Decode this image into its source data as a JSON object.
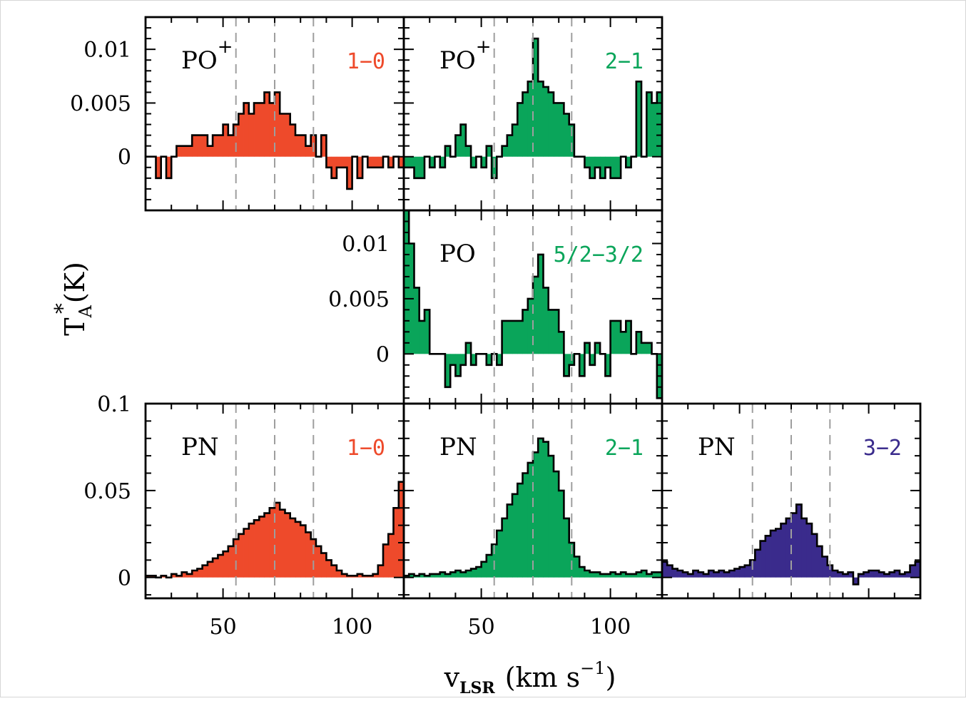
{
  "y_axis_label": {
    "main": "T",
    "sub": "A",
    "sup": "*",
    "unit": "(K)"
  },
  "x_axis_label": {
    "main": "v",
    "sub": "LSR",
    "unit_open": "(km s",
    "sup": "−1",
    "unit_close": ")"
  },
  "chart_data": [
    {
      "type": "line",
      "panel": "top-left",
      "molecule": "PO",
      "molecule_sup": "+",
      "transition": "1−0",
      "transition_color": "#ee4a2b",
      "fill_color": "#ee4a2b",
      "xlim": [
        20,
        120
      ],
      "ylim": [
        -0.005,
        0.013
      ],
      "y_ticks": [
        "0.01",
        "0.005",
        "0"
      ],
      "y_tick_values": [
        0.01,
        0.005,
        0
      ],
      "x_ticks": [],
      "x_tick_values": [],
      "vlines": [
        55,
        70,
        85
      ],
      "x": [
        20,
        22,
        24,
        26,
        28,
        30,
        32,
        34,
        36,
        38,
        40,
        42,
        44,
        46,
        48,
        50,
        52,
        54,
        56,
        58,
        60,
        62,
        64,
        66,
        68,
        70,
        72,
        74,
        76,
        78,
        80,
        82,
        84,
        86,
        88,
        90,
        92,
        94,
        96,
        98,
        100,
        102,
        104,
        106,
        108,
        110,
        112,
        114,
        116,
        118
      ],
      "y": [
        0.0,
        0.0,
        -0.002,
        0.0,
        -0.002,
        0.0,
        0.001,
        0.001,
        0.001,
        0.002,
        0.002,
        0.002,
        0.001,
        0.002,
        0.002,
        0.003,
        0.002,
        0.003,
        0.004,
        0.005,
        0.004,
        0.005,
        0.005,
        0.006,
        0.005,
        0.006,
        0.004,
        0.004,
        0.003,
        0.002,
        0.002,
        0.001,
        0.002,
        0.0,
        0.002,
        -0.001,
        -0.002,
        -0.001,
        -0.001,
        -0.003,
        0.0,
        -0.002,
        0.0,
        -0.001,
        -0.001,
        -0.001,
        0.0,
        -0.001,
        0.0,
        -0.001
      ]
    },
    {
      "type": "line",
      "panel": "top-middle",
      "molecule": "PO",
      "molecule_sup": "+",
      "transition": "2−1",
      "transition_color": "#0aa55a",
      "fill_color": "#0aa55a",
      "xlim": [
        20,
        120
      ],
      "ylim": [
        -0.005,
        0.013
      ],
      "y_ticks": [],
      "y_tick_values": [],
      "x_ticks": [],
      "x_tick_values": [],
      "vlines": [
        55,
        70,
        85
      ],
      "x": [
        20,
        22,
        24,
        26,
        28,
        30,
        32,
        34,
        36,
        38,
        40,
        42,
        44,
        46,
        48,
        50,
        52,
        54,
        56,
        58,
        60,
        62,
        64,
        66,
        68,
        70,
        72,
        74,
        76,
        78,
        80,
        82,
        84,
        86,
        88,
        90,
        92,
        94,
        96,
        98,
        100,
        102,
        104,
        106,
        108,
        110,
        112,
        114,
        116,
        118
      ],
      "y": [
        -0.001,
        -0.001,
        -0.002,
        -0.002,
        0.0,
        -0.001,
        0.0,
        -0.001,
        0.001,
        0.0,
        0.002,
        0.003,
        0.001,
        -0.001,
        0.0,
        -0.001,
        0.001,
        -0.002,
        0.0,
        0.001,
        0.002,
        0.003,
        0.005,
        0.006,
        0.007,
        0.011,
        0.007,
        0.0065,
        0.006,
        0.005,
        0.005,
        0.004,
        0.003,
        0.0,
        0.0,
        -0.001,
        -0.002,
        -0.001,
        -0.002,
        -0.001,
        -0.002,
        -0.002,
        0.0,
        -0.001,
        0.0,
        0.007,
        0.0,
        0.006,
        0.005,
        0.006
      ]
    },
    {
      "type": "line",
      "panel": "middle",
      "molecule": "PO",
      "molecule_sup": "",
      "transition": "5/2−3/2",
      "transition_color": "#0aa55a",
      "fill_color": "#0aa55a",
      "xlim": [
        20,
        120
      ],
      "ylim": [
        -0.0045,
        0.013
      ],
      "y_ticks": [
        "0.01",
        "0.005",
        "0"
      ],
      "y_tick_values": [
        0.01,
        0.005,
        0
      ],
      "x_ticks": [],
      "x_tick_values": [],
      "vlines": [
        55,
        70,
        85
      ],
      "x": [
        20,
        22,
        24,
        26,
        28,
        30,
        32,
        34,
        36,
        38,
        40,
        42,
        44,
        46,
        48,
        50,
        52,
        54,
        56,
        58,
        60,
        62,
        64,
        66,
        68,
        70,
        72,
        74,
        76,
        78,
        80,
        82,
        84,
        86,
        88,
        90,
        92,
        94,
        96,
        98,
        100,
        102,
        104,
        106,
        108,
        110,
        112,
        114,
        116,
        118
      ],
      "y": [
        0.013,
        0.01,
        0.006,
        0.003,
        0.004,
        0.0,
        0.0,
        0.0,
        -0.003,
        -0.001,
        -0.002,
        -0.001,
        0.001,
        -0.001,
        0.0,
        0.0,
        -0.001,
        0.0,
        -0.001,
        0.003,
        0.003,
        0.003,
        0.003,
        0.004,
        0.005,
        0.007,
        0.009,
        0.006,
        0.004,
        0.004,
        0.002,
        -0.002,
        -0.001,
        0.0,
        -0.002,
        0.001,
        -0.001,
        0.001,
        0.0,
        -0.002,
        0.003,
        0.003,
        0.002,
        0.003,
        0.0,
        0.002,
        0.001,
        0.001,
        0.0,
        -0.004
      ]
    },
    {
      "type": "line",
      "panel": "bottom-left",
      "molecule": "PN",
      "molecule_sup": "",
      "transition": "1−0",
      "transition_color": "#ee4a2b",
      "fill_color": "#ee4a2b",
      "xlim": [
        20,
        120
      ],
      "ylim": [
        -0.012,
        0.1
      ],
      "y_ticks": [
        "0.1",
        "0.05",
        "0"
      ],
      "y_tick_values": [
        0.1,
        0.05,
        0
      ],
      "x_ticks": [
        "50",
        "100"
      ],
      "x_tick_values": [
        50,
        100
      ],
      "vlines": [
        55,
        70,
        85
      ],
      "x": [
        20,
        22,
        24,
        26,
        28,
        30,
        32,
        34,
        36,
        38,
        40,
        42,
        44,
        46,
        48,
        50,
        52,
        54,
        56,
        58,
        60,
        62,
        64,
        66,
        68,
        70,
        72,
        74,
        76,
        78,
        80,
        82,
        84,
        86,
        88,
        90,
        92,
        94,
        96,
        98,
        100,
        102,
        104,
        106,
        108,
        110,
        112,
        114,
        116,
        118
      ],
      "y": [
        0.001,
        0.001,
        0.0,
        0.001,
        0.0,
        0.002,
        0.001,
        0.003,
        0.002,
        0.004,
        0.005,
        0.007,
        0.009,
        0.011,
        0.013,
        0.015,
        0.018,
        0.022,
        0.025,
        0.028,
        0.031,
        0.033,
        0.035,
        0.037,
        0.04,
        0.043,
        0.039,
        0.037,
        0.034,
        0.032,
        0.03,
        0.026,
        0.022,
        0.018,
        0.014,
        0.01,
        0.007,
        0.004,
        0.002,
        0.001,
        0.001,
        0.002,
        0.001,
        0.001,
        0.002,
        0.007,
        0.019,
        0.025,
        0.04,
        0.055
      ]
    },
    {
      "type": "line",
      "panel": "bottom-middle",
      "molecule": "PN",
      "molecule_sup": "",
      "transition": "2−1",
      "transition_color": "#0aa55a",
      "fill_color": "#0aa55a",
      "xlim": [
        20,
        120
      ],
      "ylim": [
        -0.012,
        0.1
      ],
      "y_ticks": [],
      "y_tick_values": [],
      "x_ticks": [
        "50",
        "100"
      ],
      "x_tick_values": [
        50,
        100
      ],
      "vlines": [
        55,
        70,
        85
      ],
      "x": [
        20,
        22,
        24,
        26,
        28,
        30,
        32,
        34,
        36,
        38,
        40,
        42,
        44,
        46,
        48,
        50,
        52,
        54,
        56,
        58,
        60,
        62,
        64,
        66,
        68,
        70,
        72,
        74,
        76,
        78,
        80,
        82,
        84,
        86,
        88,
        90,
        92,
        94,
        96,
        98,
        100,
        102,
        104,
        106,
        108,
        110,
        112,
        114,
        116,
        118
      ],
      "y": [
        0.001,
        0.002,
        0.001,
        0.002,
        0.001,
        0.002,
        0.002,
        0.003,
        0.002,
        0.003,
        0.004,
        0.003,
        0.004,
        0.005,
        0.006,
        0.009,
        0.013,
        0.019,
        0.027,
        0.034,
        0.042,
        0.048,
        0.054,
        0.06,
        0.066,
        0.072,
        0.08,
        0.078,
        0.07,
        0.061,
        0.05,
        0.034,
        0.02,
        0.012,
        0.006,
        0.004,
        0.003,
        0.003,
        0.002,
        0.002,
        0.003,
        0.002,
        0.003,
        0.002,
        0.002,
        0.003,
        0.004,
        0.002,
        0.003,
        0.003
      ]
    },
    {
      "type": "line",
      "panel": "bottom-right",
      "molecule": "PN",
      "molecule_sup": "",
      "transition": "3−2",
      "transition_color": "#3a2b8c",
      "fill_color": "#3a2b8c",
      "xlim": [
        20,
        120
      ],
      "ylim": [
        -0.012,
        0.1
      ],
      "y_ticks": [],
      "y_tick_values": [],
      "x_ticks": [],
      "x_tick_values": [],
      "vlines": [
        55,
        70,
        85
      ],
      "x": [
        20,
        22,
        24,
        26,
        28,
        30,
        32,
        34,
        36,
        38,
        40,
        42,
        44,
        46,
        48,
        50,
        52,
        54,
        56,
        58,
        60,
        62,
        64,
        66,
        68,
        70,
        72,
        74,
        76,
        78,
        80,
        82,
        84,
        86,
        88,
        90,
        92,
        94,
        96,
        98,
        100,
        102,
        104,
        106,
        108,
        110,
        112,
        114,
        116,
        118
      ],
      "y": [
        0.009,
        0.007,
        0.005,
        0.004,
        0.003,
        0.002,
        0.004,
        0.003,
        0.002,
        0.004,
        0.003,
        0.004,
        0.003,
        0.004,
        0.005,
        0.006,
        0.007,
        0.01,
        0.016,
        0.021,
        0.024,
        0.027,
        0.028,
        0.031,
        0.034,
        0.037,
        0.042,
        0.034,
        0.031,
        0.025,
        0.018,
        0.012,
        0.007,
        0.004,
        0.003,
        0.002,
        0.003,
        -0.004,
        0.002,
        0.003,
        0.004,
        0.004,
        0.003,
        0.002,
        0.003,
        0.004,
        0.002,
        0.003,
        0.007,
        0.009
      ]
    }
  ]
}
